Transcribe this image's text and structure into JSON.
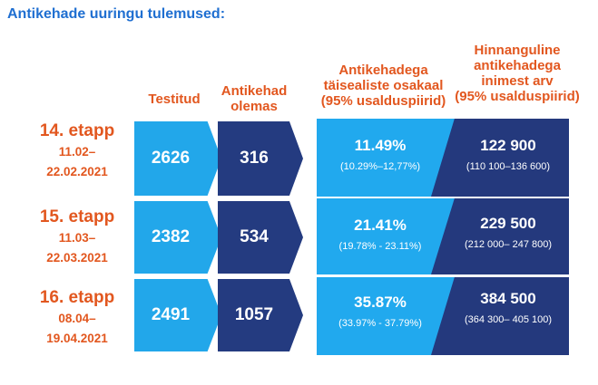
{
  "title": "Antikehade uuringu tulemused:",
  "headers": {
    "tested": "Testitud",
    "antibody": "Antikehad\nolemas",
    "share": "Antikehadega\ntäisealiste osakaal\n(95% usalduspiirid)",
    "estimate": "Hinnanguline\nantikehadega\ninimest arv\n(95% usalduspiirid)"
  },
  "stages": [
    {
      "name": "14. etapp",
      "dates_start": "11.02–",
      "dates_end": "22.02.2021",
      "tested": "2626",
      "antibody": "316",
      "share": "11.49%",
      "share_ci": "(10.29%–12,77%)",
      "estimate": "122 900",
      "estimate_ci": "(110 100–136 600)"
    },
    {
      "name": "15. etapp",
      "dates_start": "11.03–",
      "dates_end": "22.03.2021",
      "tested": "2382",
      "antibody": "534",
      "share": "21.41%",
      "share_ci": "(19.78% - 23.11%)",
      "estimate": "229 500",
      "estimate_ci": "(212 000– 247 800)"
    },
    {
      "name": "16. etapp",
      "dates_start": "08.04–",
      "dates_end": "19.04.2021",
      "tested": "2491",
      "antibody": "1057",
      "share": "35.87%",
      "share_ci": "(33.97% - 37.79%)",
      "estimate": "384 500",
      "estimate_ci": "(364 300– 405 100)"
    }
  ],
  "colors": {
    "title": "#1f6fd1",
    "header": "#e2571f",
    "light_blue": "#22a7ea",
    "dark_blue": "#243b80"
  }
}
